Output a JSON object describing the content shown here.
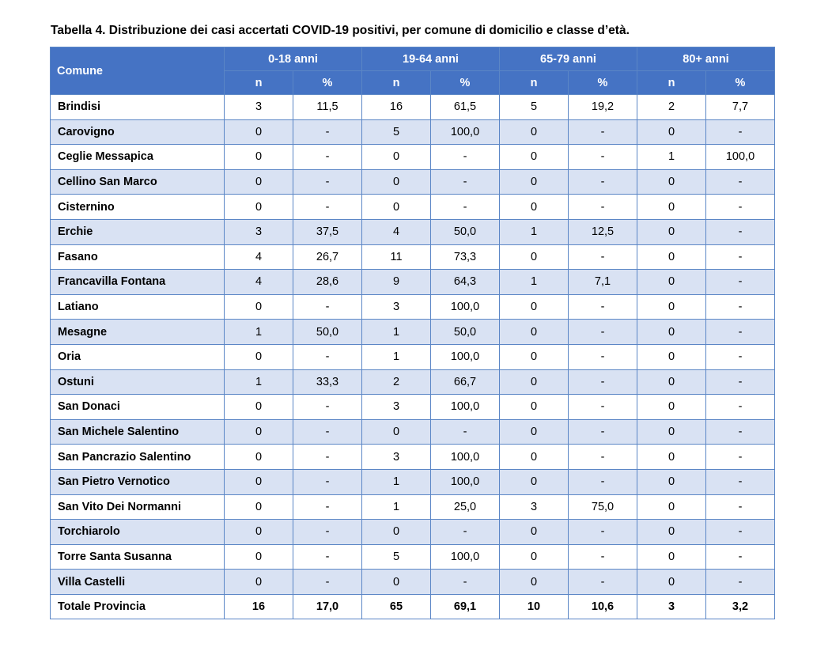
{
  "caption": "Tabella 4. Distribuzione dei casi accertati COVID-19 positivi, per comune di domicilio e classe d’età.",
  "header": {
    "comune": "Comune",
    "groups": [
      "0-18 anni",
      "19-64 anni",
      "65-79 anni",
      "80+ anni"
    ],
    "sub_n": "n",
    "sub_pct": "%"
  },
  "colors": {
    "header_bg": "#4573c4",
    "alt_row_bg": "#d9e2f3",
    "border": "#5b86c6"
  },
  "rows": [
    {
      "comune": "Brindisi",
      "v": [
        "3",
        "11,5",
        "16",
        "61,5",
        "5",
        "19,2",
        "2",
        "7,7"
      ]
    },
    {
      "comune": "Carovigno",
      "v": [
        "0",
        "-",
        "5",
        "100,0",
        "0",
        "-",
        "0",
        "-"
      ]
    },
    {
      "comune": "Ceglie Messapica",
      "v": [
        "0",
        "-",
        "0",
        "-",
        "0",
        "-",
        "1",
        "100,0"
      ]
    },
    {
      "comune": "Cellino San Marco",
      "v": [
        "0",
        "-",
        "0",
        "-",
        "0",
        "-",
        "0",
        "-"
      ]
    },
    {
      "comune": "Cisternino",
      "v": [
        "0",
        "-",
        "0",
        "-",
        "0",
        "-",
        "0",
        "-"
      ]
    },
    {
      "comune": "Erchie",
      "v": [
        "3",
        "37,5",
        "4",
        "50,0",
        "1",
        "12,5",
        "0",
        "-"
      ]
    },
    {
      "comune": "Fasano",
      "v": [
        "4",
        "26,7",
        "11",
        "73,3",
        "0",
        "-",
        "0",
        "-"
      ]
    },
    {
      "comune": "Francavilla Fontana",
      "v": [
        "4",
        "28,6",
        "9",
        "64,3",
        "1",
        "7,1",
        "0",
        "-"
      ]
    },
    {
      "comune": "Latiano",
      "v": [
        "0",
        "-",
        "3",
        "100,0",
        "0",
        "-",
        "0",
        "-"
      ]
    },
    {
      "comune": "Mesagne",
      "v": [
        "1",
        "50,0",
        "1",
        "50,0",
        "0",
        "-",
        "0",
        "-"
      ]
    },
    {
      "comune": "Oria",
      "v": [
        "0",
        "-",
        "1",
        "100,0",
        "0",
        "-",
        "0",
        "-"
      ]
    },
    {
      "comune": "Ostuni",
      "v": [
        "1",
        "33,3",
        "2",
        "66,7",
        "0",
        "-",
        "0",
        "-"
      ]
    },
    {
      "comune": "San Donaci",
      "v": [
        "0",
        "-",
        "3",
        "100,0",
        "0",
        "-",
        "0",
        "-"
      ]
    },
    {
      "comune": "San Michele Salentino",
      "v": [
        "0",
        "-",
        "0",
        "-",
        "0",
        "-",
        "0",
        "-"
      ]
    },
    {
      "comune": "San Pancrazio Salentino",
      "v": [
        "0",
        "-",
        "3",
        "100,0",
        "0",
        "-",
        "0",
        "-"
      ]
    },
    {
      "comune": "San Pietro Vernotico",
      "v": [
        "0",
        "-",
        "1",
        "100,0",
        "0",
        "-",
        "0",
        "-"
      ]
    },
    {
      "comune": "San Vito Dei Normanni",
      "v": [
        "0",
        "-",
        "1",
        "25,0",
        "3",
        "75,0",
        "0",
        "-"
      ]
    },
    {
      "comune": "Torchiarolo",
      "v": [
        "0",
        "-",
        "0",
        "-",
        "0",
        "-",
        "0",
        "-"
      ]
    },
    {
      "comune": "Torre Santa Susanna",
      "v": [
        "0",
        "-",
        "5",
        "100,0",
        "0",
        "-",
        "0",
        "-"
      ]
    },
    {
      "comune": "Villa Castelli",
      "v": [
        "0",
        "-",
        "0",
        "-",
        "0",
        "-",
        "0",
        "-"
      ]
    }
  ],
  "total": {
    "comune": "Totale Provincia",
    "v": [
      "16",
      "17,0",
      "65",
      "69,1",
      "10",
      "10,6",
      "3",
      "3,2"
    ]
  }
}
